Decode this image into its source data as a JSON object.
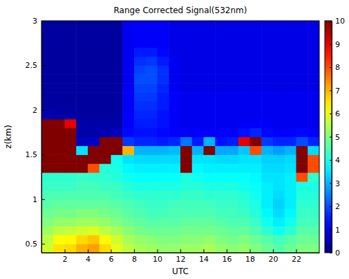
{
  "chart_data": {
    "type": "heatmap",
    "title": "Range Corrected Signal(532nm)",
    "x_label": "UTC",
    "y_label": "z(km)",
    "x": [
      0.5,
      1.5,
      2.5,
      3.5,
      4.5,
      5.5,
      6.5,
      7.5,
      8.5,
      9.5,
      10.5,
      11.5,
      12.5,
      13.5,
      14.5,
      15.5,
      16.5,
      17.5,
      18.5,
      19.5,
      20.5,
      21.5,
      22.5,
      23.5
    ],
    "y": [
      0.45,
      0.55,
      0.65,
      0.75,
      0.85,
      0.95,
      1.05,
      1.15,
      1.25,
      1.35,
      1.45,
      1.55,
      1.65,
      1.75,
      1.85,
      1.95,
      2.05,
      2.15,
      2.25,
      2.35,
      2.45,
      2.55,
      2.65,
      2.75,
      2.85,
      2.95
    ],
    "values": [
      [
        5.8,
        6.5,
        6.6,
        7.0,
        7.2,
        6.6,
        6.0,
        5.6,
        5.4,
        5.3,
        5.2,
        5.2,
        5.3,
        5.3,
        5.4,
        5.2,
        5.1,
        5.2,
        5.0,
        4.8,
        4.6,
        4.8,
        5.0,
        5.0
      ],
      [
        5.6,
        6.2,
        6.3,
        6.6,
        6.8,
        6.3,
        5.8,
        5.4,
        5.2,
        5.1,
        5.0,
        5.0,
        5.1,
        5.1,
        5.2,
        5.0,
        4.9,
        5.0,
        4.8,
        4.6,
        4.4,
        4.6,
        4.8,
        4.8
      ],
      [
        5.3,
        5.6,
        5.7,
        5.8,
        5.9,
        5.6,
        5.4,
        5.1,
        4.9,
        4.8,
        4.8,
        4.8,
        4.9,
        4.9,
        4.9,
        4.8,
        4.7,
        4.7,
        4.5,
        4.2,
        3.9,
        4.2,
        4.6,
        4.6
      ],
      [
        5.0,
        5.2,
        5.2,
        5.3,
        5.3,
        5.2,
        5.0,
        4.8,
        4.7,
        4.6,
        4.6,
        4.6,
        4.7,
        4.7,
        4.7,
        4.6,
        4.5,
        4.5,
        4.3,
        3.9,
        3.6,
        3.9,
        4.4,
        4.4
      ],
      [
        4.8,
        4.9,
        4.9,
        5.0,
        5.0,
        4.9,
        4.8,
        4.6,
        4.5,
        4.4,
        4.4,
        4.5,
        4.5,
        4.5,
        4.5,
        4.4,
        4.4,
        4.3,
        4.1,
        3.7,
        3.4,
        3.7,
        4.3,
        4.3
      ],
      [
        4.6,
        4.7,
        4.7,
        4.7,
        4.7,
        4.7,
        4.6,
        4.5,
        4.4,
        4.3,
        4.3,
        4.4,
        4.4,
        4.4,
        4.4,
        4.3,
        4.3,
        4.2,
        4.0,
        3.6,
        3.3,
        3.6,
        4.2,
        4.2
      ],
      [
        4.5,
        4.5,
        4.5,
        4.5,
        4.5,
        4.5,
        4.4,
        4.3,
        4.2,
        4.2,
        4.2,
        4.2,
        4.3,
        4.3,
        4.2,
        4.2,
        4.2,
        4.1,
        3.9,
        3.6,
        3.4,
        3.6,
        4.1,
        4.1
      ],
      [
        4.3,
        4.3,
        4.3,
        4.4,
        4.4,
        4.3,
        4.3,
        4.1,
        4.0,
        4.0,
        4.0,
        4.0,
        4.1,
        4.1,
        4.0,
        4.0,
        4.0,
        3.9,
        3.8,
        3.6,
        3.5,
        3.6,
        4.0,
        4.0
      ],
      [
        4.2,
        4.2,
        4.2,
        4.3,
        4.2,
        4.2,
        4.1,
        3.9,
        3.8,
        3.8,
        3.8,
        3.8,
        4.0,
        3.9,
        3.8,
        3.8,
        3.8,
        3.8,
        3.7,
        3.5,
        3.5,
        3.6,
        8.0,
        4.2
      ],
      [
        10,
        10,
        10,
        10,
        8.0,
        4.1,
        4.0,
        3.7,
        3.6,
        3.6,
        3.6,
        3.6,
        10,
        3.7,
        3.6,
        3.6,
        3.6,
        3.6,
        3.6,
        3.4,
        3.4,
        3.5,
        10,
        8.0
      ],
      [
        10,
        10,
        10,
        10,
        10,
        10,
        3.9,
        3.5,
        3.4,
        3.4,
        3.4,
        3.4,
        10,
        3.5,
        3.5,
        3.4,
        3.4,
        3.5,
        3.5,
        3.3,
        3.3,
        3.4,
        10,
        8.0
      ],
      [
        10,
        10,
        10,
        3.5,
        10,
        10,
        10,
        7.0,
        3.0,
        3.0,
        3.0,
        3.1,
        10,
        3.0,
        10,
        2.9,
        2.9,
        3.2,
        8.0,
        3.0,
        2.8,
        3.0,
        10,
        3.4
      ],
      [
        10,
        10,
        10,
        0.6,
        0.7,
        10,
        10,
        1.8,
        1.6,
        1.6,
        1.5,
        1.6,
        2.4,
        1.5,
        3.0,
        1.4,
        1.5,
        9.0,
        10,
        1.8,
        1.6,
        1.6,
        2.0,
        1.6
      ],
      [
        10,
        10,
        10,
        0.4,
        0.4,
        0.5,
        0.6,
        1.3,
        1.4,
        1.4,
        1.3,
        1.2,
        1.2,
        1.2,
        1.2,
        1.2,
        1.2,
        1.4,
        1.6,
        1.3,
        1.2,
        1.2,
        1.3,
        1.2
      ],
      [
        10,
        10,
        9.0,
        0.4,
        0.4,
        0.4,
        0.4,
        1.2,
        1.5,
        1.5,
        1.4,
        1.2,
        1.1,
        1.1,
        1.1,
        1.1,
        1.1,
        1.2,
        1.2,
        1.2,
        1.1,
        1.1,
        1.1,
        1.1
      ],
      [
        0.5,
        0.4,
        0.4,
        0.3,
        0.3,
        0.3,
        0.3,
        1.2,
        1.6,
        1.6,
        1.4,
        1.2,
        1.1,
        1.1,
        1.1,
        1.1,
        1.1,
        1.1,
        1.1,
        1.1,
        1.1,
        1.1,
        1.1,
        1.1
      ],
      [
        0.3,
        0.3,
        0.3,
        0.3,
        0.3,
        0.3,
        0.3,
        1.2,
        1.7,
        1.7,
        1.5,
        1.2,
        1.1,
        1.1,
        1.1,
        1.1,
        1.1,
        1.1,
        1.1,
        1.1,
        1.1,
        1.1,
        1.1,
        1.1
      ],
      [
        0.3,
        0.3,
        0.3,
        0.3,
        0.3,
        0.3,
        0.3,
        1.2,
        1.8,
        1.8,
        1.5,
        1.2,
        1.1,
        1.1,
        1.1,
        1.1,
        1.1,
        1.1,
        1.1,
        1.1,
        1.1,
        1.1,
        1.1,
        1.1
      ],
      [
        0.3,
        0.3,
        0.3,
        0.3,
        0.3,
        0.3,
        0.3,
        1.1,
        1.9,
        1.9,
        1.6,
        1.1,
        1.0,
        1.0,
        1.0,
        1.0,
        1.0,
        1.0,
        1.0,
        1.0,
        1.0,
        1.0,
        1.0,
        1.0
      ],
      [
        0.3,
        0.3,
        0.3,
        0.3,
        0.3,
        0.3,
        0.3,
        1.1,
        2.0,
        2.0,
        1.7,
        1.1,
        1.0,
        1.0,
        1.0,
        1.0,
        1.0,
        1.0,
        1.0,
        1.0,
        1.0,
        1.0,
        1.0,
        1.0
      ],
      [
        0.3,
        0.3,
        0.3,
        0.3,
        0.3,
        0.3,
        0.3,
        1.1,
        1.9,
        2.0,
        1.7,
        1.1,
        1.0,
        1.0,
        1.0,
        1.0,
        1.0,
        1.0,
        1.0,
        1.0,
        1.0,
        1.0,
        1.0,
        1.0
      ],
      [
        0.3,
        0.3,
        0.3,
        0.3,
        0.3,
        0.3,
        0.3,
        1.1,
        1.7,
        1.8,
        1.5,
        1.1,
        1.0,
        1.0,
        1.0,
        1.0,
        1.0,
        1.0,
        1.0,
        1.0,
        1.0,
        1.0,
        1.0,
        1.0
      ],
      [
        0.3,
        0.3,
        0.3,
        0.3,
        0.3,
        0.3,
        0.3,
        1.1,
        1.5,
        1.5,
        1.3,
        1.0,
        1.0,
        1.0,
        1.0,
        1.0,
        1.0,
        1.0,
        1.0,
        1.0,
        1.0,
        1.0,
        1.0,
        1.0
      ],
      [
        0.3,
        0.3,
        0.3,
        0.3,
        0.3,
        0.3,
        0.3,
        1.1,
        1.2,
        1.2,
        1.2,
        1.0,
        1.0,
        1.0,
        1.0,
        1.0,
        1.0,
        1.0,
        1.0,
        1.0,
        1.0,
        1.0,
        1.0,
        1.0
      ],
      [
        0.3,
        0.3,
        0.3,
        0.3,
        0.3,
        0.3,
        0.3,
        1.1,
        1.2,
        1.2,
        1.2,
        1.0,
        1.0,
        1.0,
        1.0,
        1.0,
        1.0,
        1.0,
        1.0,
        1.0,
        1.0,
        1.0,
        1.0,
        1.0
      ],
      [
        0.3,
        0.3,
        0.3,
        0.3,
        0.3,
        0.3,
        0.3,
        1.1,
        1.2,
        1.2,
        1.2,
        1.0,
        1.0,
        1.0,
        1.0,
        1.0,
        1.0,
        1.0,
        1.0,
        1.0,
        1.0,
        1.0,
        1.0,
        1.0
      ]
    ],
    "xlim": [
      0,
      24
    ],
    "ylim": [
      0.4,
      3
    ],
    "xticks": [
      2,
      4,
      6,
      8,
      10,
      12,
      14,
      16,
      18,
      20,
      22
    ],
    "yticks": [
      0.5,
      1,
      1.5,
      2,
      2.5,
      3
    ],
    "colorbar_range": [
      0,
      10
    ],
    "colorbar_ticks": [
      0,
      1,
      2,
      3,
      4,
      5,
      6,
      7,
      8,
      9,
      10
    ]
  }
}
